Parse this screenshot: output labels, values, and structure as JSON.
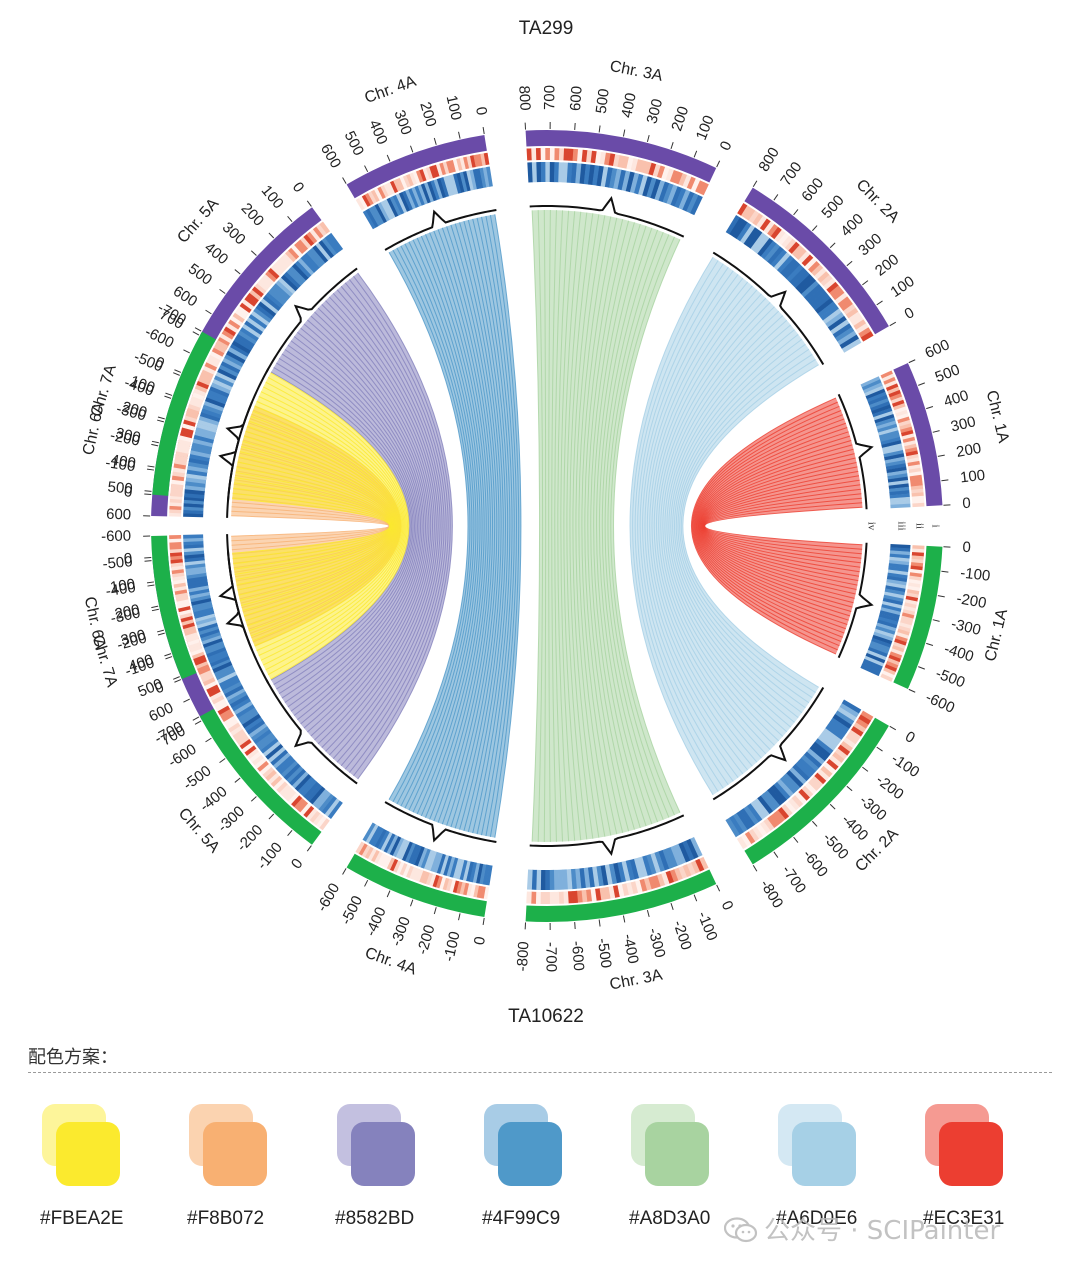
{
  "figure": {
    "top_genome": "TA299",
    "bottom_genome": "TA10622",
    "track_labels": [
      "i",
      "ii",
      "iii",
      "iv"
    ]
  },
  "chart_data": {
    "type": "circos",
    "genomes": [
      {
        "name": "TA299",
        "color": "#6A4BA8",
        "side": "top"
      },
      {
        "name": "TA10622",
        "color": "#1DB04A",
        "side": "bottom"
      }
    ],
    "chromosomes_top": [
      {
        "name": "Chr. 1A",
        "length": 600,
        "ticks": [
          0,
          100,
          200,
          300,
          400,
          500,
          600
        ]
      },
      {
        "name": "Chr. 2A",
        "length": 800,
        "ticks": [
          0,
          100,
          200,
          300,
          400,
          500,
          600,
          700,
          800
        ]
      },
      {
        "name": "Chr. 3A",
        "length": 800,
        "ticks": [
          0,
          100,
          200,
          300,
          400,
          500,
          600,
          700,
          800
        ]
      },
      {
        "name": "Chr. 4A",
        "length": 600,
        "ticks": [
          0,
          100,
          200,
          300,
          400,
          500,
          600
        ]
      },
      {
        "name": "Chr. 5A",
        "length": 700,
        "ticks": [
          0,
          100,
          200,
          300,
          400,
          500,
          600,
          700
        ]
      },
      {
        "name": "Chr. 6A",
        "length": 600,
        "ticks": [
          0,
          100,
          200,
          300,
          400,
          500,
          600
        ]
      },
      {
        "name": "Chr. 7A",
        "length": 700,
        "ticks": [
          0,
          100,
          200,
          300,
          400,
          500,
          600,
          700
        ]
      }
    ],
    "chromosomes_bottom": [
      {
        "name": "Chr. 1A",
        "length": 600,
        "ticks": [
          "0",
          "-100",
          "-200",
          "-300",
          "-400",
          "-500",
          "-600"
        ]
      },
      {
        "name": "Chr. 2A",
        "length": 800,
        "ticks": [
          "0",
          "-100",
          "-200",
          "-300",
          "-400",
          "-500",
          "-600",
          "-700",
          "-800"
        ]
      },
      {
        "name": "Chr. 3A",
        "length": 800,
        "ticks": [
          "0",
          "-100",
          "-200",
          "-300",
          "-400",
          "-500",
          "-600",
          "-700",
          "-800"
        ]
      },
      {
        "name": "Chr. 4A",
        "length": 600,
        "ticks": [
          "0",
          "-100",
          "-200",
          "-300",
          "-400",
          "-500",
          "-600"
        ]
      },
      {
        "name": "Chr. 5A",
        "length": 700,
        "ticks": [
          "0",
          "-100",
          "-200",
          "-300",
          "-400",
          "-500",
          "-600",
          "-700"
        ]
      },
      {
        "name": "Chr. 6A",
        "length": 600,
        "ticks": [
          "0",
          "-100",
          "-200",
          "-300",
          "-400",
          "-500",
          "-600"
        ]
      },
      {
        "name": "Chr. 7A",
        "length": 700,
        "ticks": [
          "0",
          "-100",
          "-200",
          "-300",
          "-400",
          "-500",
          "-600",
          "-700"
        ]
      }
    ],
    "links": [
      {
        "chromosome": "1A",
        "color": "#EC3E31"
      },
      {
        "chromosome": "2A",
        "color": "#A6D0E6"
      },
      {
        "chromosome": "3A",
        "color": "#A8D3A0"
      },
      {
        "chromosome": "4A",
        "color": "#4F99C9"
      },
      {
        "chromosome": "5A",
        "color": "#8582BD"
      },
      {
        "chromosome": "6A",
        "color": "#F8B072"
      },
      {
        "chromosome": "7A",
        "color": "#FBEA2E"
      }
    ]
  },
  "palette": {
    "title": "配色方案：",
    "swatches": [
      {
        "hex": "#FBEA2E",
        "light": "#FDF59A"
      },
      {
        "hex": "#F8B072",
        "light": "#FBD3B0"
      },
      {
        "hex": "#8582BD",
        "light": "#C3C0E0"
      },
      {
        "hex": "#4F99C9",
        "light": "#A8CCE6"
      },
      {
        "hex": "#A8D3A0",
        "light": "#D6EBD1"
      },
      {
        "hex": "#A6D0E6",
        "light": "#D4E8F3"
      },
      {
        "hex": "#EC3E31",
        "light": "#F59A92"
      }
    ]
  },
  "watermark": {
    "text": "公众号 · SCIPainter",
    "icon": "wechat-icon"
  }
}
